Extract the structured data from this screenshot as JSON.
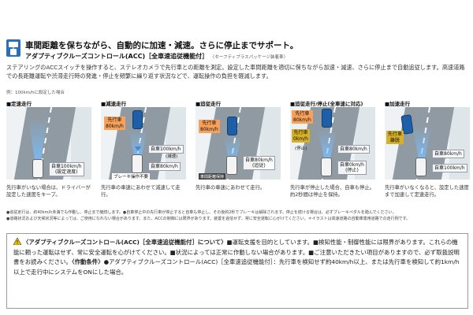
{
  "header": {
    "icon": "adaptive-cruise-icon",
    "headline": "車間距離を保ちながら、自動的に加速・減速。さらに停止までサポート。",
    "subhead": "アダプティブクルーズコントロール(ACC)［全車速追従機能付］",
    "package_note": "〈セーフティプラスパッケージ装着車〉",
    "intro": "ステアリングのACCスイッチを操作すると、ステレオカメラで先行車との距離を測定。設定した車間距離を適切に保ちながら加速・減速、さらに停止まで自動追従します。高速道路での長距離運転や渋滞走行時の発進・停止を頻繁に繰り返す状況などで、運転操作の負担を軽減します。",
    "example_note": "例：100km/hに設定した場合"
  },
  "scenes": [
    {
      "title": "■定速走行",
      "own_speed": "自車100km/h",
      "own_note": "(設定速度)",
      "description": "先行車がいない場合は、ドライバーが設定した速度をキープ。"
    },
    {
      "title": "■減速走行",
      "lead_label": "先行車",
      "lead_speed": "80km/h",
      "own_speed_before": "自車100km/h",
      "own_note": "(減速)",
      "own_speed_after": "自車80km/h",
      "brake_note": "ブレーキ操作不要",
      "description": "先行車の車速にあわせて減速して走行。"
    },
    {
      "title": "■追従走行",
      "lead_label": "先行車",
      "lead_speed": "80km/h",
      "own_speed": "自車80km/h",
      "own_note": "(追従)",
      "distance_note": "車間距離保持",
      "description": "先行車の車速にあわせて走行。"
    },
    {
      "title": "■追従走行/停止(全車速に対応)",
      "lead_label_1": "先行車",
      "lead_speed_1": "80km/h",
      "lead_label_2": "先行車",
      "lead_speed_2": "0km/h",
      "lead_stop_note": "(停止)",
      "own_speed": "自車80km/h",
      "own_stop": "自車0km/h",
      "own_stop_note": "(停止)",
      "description": "先行車が停止した場合、自車も停止。約2秒間は停止を保持。"
    },
    {
      "title": "■加速走行",
      "lead_label": "先行車",
      "lead_note": "離脱",
      "own_speed_before": "自車80km/h",
      "own_speed_after": "自車100km/h",
      "description": "先行車がいなくなると、設定した速度まで加速して定速走行。"
    }
  ],
  "footnotes": [
    "●追従走行は、約40km/h未満でも作動し、停止まで継続します。●自車停止中の先行車が停止すると自車も停止し、その後約2秒でブレーキは解除されます。停止を続ける場合は、必ずブレーキペダルを踏んでください。",
    "●道路状況および天候状況等によっては、ご使用になれない場合があります。また、ACCの制御には限界があります。装置を過信せず、常に安全運転に心がけてください。＊イラストは高速道路の自動車専用道路での走行例です。"
  ],
  "warning": {
    "icon": "warning-triangle-icon",
    "title": "〈アダプティブクルーズコントロール(ACC)［全車速追従機能付］について〉",
    "body_1": "■運転支援を目的としています。■検知性能・制御性能には限界があります。これらの機能に頼った運転はせず、常に安全運転を心がけてください。■状況によっては正常に作動しない場合があります。■ご注意いただきたい項目がありますので、必ず取扱説明書をお読みください。",
    "condition_title": "〈作動条件〉",
    "body_2": "●アダプティブクルーズコントロール(ACC)［全車速追従機能付］：先行車を検知せず約40km/h以上、または先行車を検知して約1km/h以上で走行中にシステムをONにした場合。"
  },
  "colors": {
    "accent_blue": "#2d6fb7",
    "lead_car": "#1f5fa8",
    "lead_label_orange": "#f7a15a",
    "stop_label_gold": "#d6b02b",
    "beam_blue": "#78beff"
  }
}
